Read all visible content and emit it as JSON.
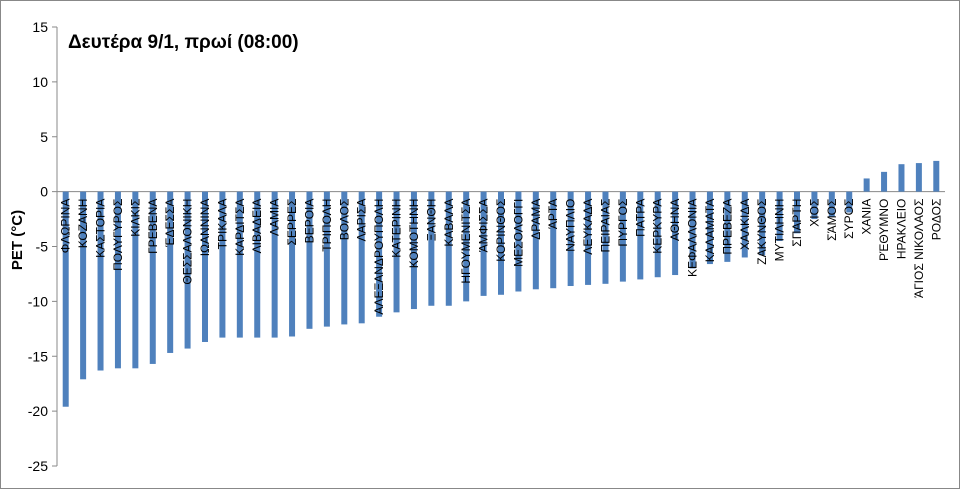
{
  "chart_data": {
    "type": "bar",
    "title": "Δευτέρα 9/1, πρωί (08:00)",
    "y_label": "PET (°C)",
    "categories": [
      "ΦΛΩΡΙΝΑ",
      "ΚΟΖΑΝΗ",
      "ΚΑΣΤΟΡΙΑ",
      "ΠΟΛΥΓΥΡΟΣ",
      "ΚΙΛΚΙΣ",
      "ΓΡΕΒΕΝΑ",
      "ΈΔΕΣΣΑ",
      "ΘΕΣΣΑΛΟΝΙΚΗ",
      "ΙΩΑΝΝΙΝΑ",
      "ΤΡΙΚΑΛΑ",
      "ΚΑΡΔΙΤΣΑ",
      "ΛΙΒΑΔΕΙΑ",
      "ΛΑΜΙΑ",
      "ΣΕΡΡΕΣ",
      "ΒΕΡΟΙΑ",
      "ΤΡΙΠΟΛΗ",
      "ΒΟΛΟΣ",
      "ΛΑΡΙΣΑ",
      "ΑΛΕΞΑΝΔΡΟΥΠΟΛΗ",
      "ΚΑΤΕΡΙΝΗ",
      "ΚΟΜΟΤΗΝΗ",
      "ΞΑΝΘΗ",
      "ΚΑΒΑΛΑ",
      "ΗΓΟΥΜΕΝΙΤΣΑ",
      "ΆΜΦΙΣΣΑ",
      "ΚΟΡΙΝΘΟΣ",
      "ΜΕΣΟΛΟΓΓΙ",
      "ΔΡΑΜΑ",
      "ΆΡΤΑ",
      "ΝΑΥΠΛΙΟ",
      "ΛΕΥΚΑΔΑ",
      "ΠΕΙΡΑΙΑΣ",
      "ΠΥΡΓΟΣ",
      "ΠΑΤΡΑ",
      "ΚΕΡΚΥΡΑ",
      "ΑΘΗΝΑ",
      "ΚΕΦΑΛΛΟΝΙΑ",
      "ΚΑΛΑΜΑΤΑ",
      "ΠΡΕΒΕΖΑ",
      "ΧΑΛΚΙΔΑ",
      "ΖΑΚΥΝΘΟΣ",
      "ΜΥΤΙΛΗΝΗ",
      "ΣΠΑΡΤΗ",
      "ΧΙΟΣ",
      "ΣΆΜΟΣ",
      "ΣΥΡΟΣ",
      "ΧΑΝΙΑ",
      "ΡΈΘΥΜΝΟ",
      "ΗΡΑΚΛΕΙΟ",
      "ΆΓΙΟΣ ΝΙΚΟΛΑΟΣ",
      "ΡΟΔΟΣ"
    ],
    "values": [
      -19.6,
      -17.1,
      -16.3,
      -16.1,
      -16.1,
      -15.7,
      -14.7,
      -14.3,
      -13.7,
      -13.3,
      -13.3,
      -13.3,
      -13.3,
      -13.2,
      -12.5,
      -12.3,
      -12.1,
      -12.0,
      -11.4,
      -11.0,
      -10.7,
      -10.4,
      -10.4,
      -10.0,
      -9.5,
      -9.4,
      -9.1,
      -8.9,
      -8.8,
      -8.6,
      -8.5,
      -8.4,
      -8.2,
      -8.0,
      -7.8,
      -7.6,
      -7.0,
      -6.6,
      -6.4,
      -6.0,
      -5.8,
      -4.5,
      -3.8,
      -2.5,
      -2.3,
      -1.9,
      1.2,
      1.8,
      2.5,
      2.6,
      2.8
    ],
    "color": "#4f81bd",
    "ylim": [
      -25,
      15
    ],
    "yticks": [
      -25,
      -20,
      -15,
      -10,
      -5,
      0,
      5,
      10,
      15
    ]
  }
}
